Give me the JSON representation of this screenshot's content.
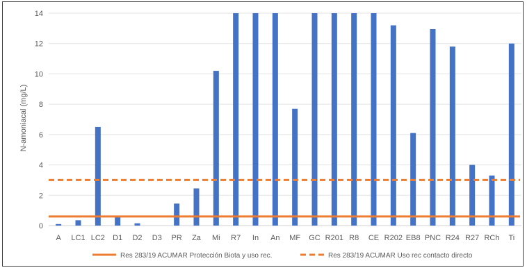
{
  "chart_data": {
    "type": "bar",
    "title": "",
    "xlabel": "",
    "ylabel": "N-amoniacal (mg/L)",
    "ylim": [
      0,
      14
    ],
    "yticks": [
      0,
      2,
      4,
      6,
      8,
      10,
      12,
      14
    ],
    "grid": true,
    "legend_position": "bottom",
    "categories": [
      "A",
      "LC1",
      "LC2",
      "D1",
      "D2",
      "D3",
      "PR",
      "Za",
      "Mi",
      "R7",
      "In",
      "An",
      "MF",
      "GC",
      "R201",
      "R8",
      "CE",
      "R202",
      "EB8",
      "PNC",
      "R24",
      "R27",
      "RCh",
      "Ti"
    ],
    "values": [
      0.1,
      0.35,
      6.5,
      0.55,
      0.15,
      0,
      1.45,
      2.45,
      10.2,
      14,
      14,
      14,
      7.7,
      14,
      14,
      14,
      14,
      13.2,
      6.1,
      12.95,
      11.8,
      4.0,
      3.3,
      12.0
    ],
    "bar_color": "#4472C4",
    "reference_lines": [
      {
        "name": "Res 283/19 ACUMAR Protección Biota y uso rec.",
        "value": 0.6,
        "color": "#ED7D31",
        "style": "solid"
      },
      {
        "name": "Res 283/19 ACUMAR Uso rec contacto directo",
        "value": 3.0,
        "color": "#ED7D31",
        "style": "dashed"
      }
    ]
  }
}
